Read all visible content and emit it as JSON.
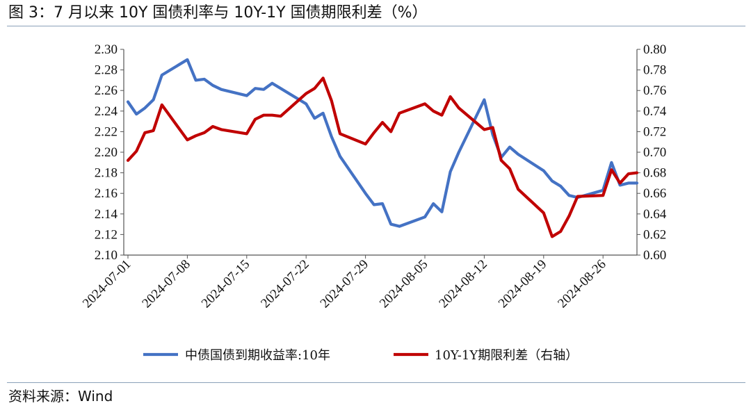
{
  "figure": {
    "title": "图 3：7 月以来 10Y 国债利率与 10Y-1Y 国债期限利差（%）",
    "source": "资料来源：Wind"
  },
  "chart_data": {
    "type": "line",
    "x_tick_labels": [
      "2024-07-01",
      "2024-07-08",
      "2024-07-15",
      "2024-07-22",
      "2024-07-29",
      "2024-08-05",
      "2024-08-12",
      "2024-08-19",
      "2024-08-26"
    ],
    "left_axis": {
      "ylim": [
        2.1,
        2.3
      ],
      "tick_labels": [
        "2.10",
        "2.12",
        "2.14",
        "2.16",
        "2.18",
        "2.20",
        "2.22",
        "2.24",
        "2.26",
        "2.28",
        "2.30"
      ]
    },
    "right_axis": {
      "ylim": [
        0.6,
        0.8
      ],
      "tick_labels": [
        "0.60",
        "0.62",
        "0.64",
        "0.66",
        "0.68",
        "0.70",
        "0.72",
        "0.74",
        "0.76",
        "0.78",
        "0.80"
      ]
    },
    "grid": false,
    "legend_position": "bottom",
    "series": [
      {
        "name": "中债国债到期收益率:10年",
        "axis": "left",
        "color": "#4472C4",
        "points": [
          [
            "2024-07-01",
            2.249
          ],
          [
            "2024-07-02",
            2.237
          ],
          [
            "2024-07-03",
            2.243
          ],
          [
            "2024-07-04",
            2.251
          ],
          [
            "2024-07-05",
            2.275
          ],
          [
            "2024-07-08",
            2.29
          ],
          [
            "2024-07-09",
            2.27
          ],
          [
            "2024-07-10",
            2.271
          ],
          [
            "2024-07-11",
            2.265
          ],
          [
            "2024-07-12",
            2.261
          ],
          [
            "2024-07-15",
            2.255
          ],
          [
            "2024-07-16",
            2.262
          ],
          [
            "2024-07-17",
            2.261
          ],
          [
            "2024-07-18",
            2.267
          ],
          [
            "2024-07-19",
            2.262
          ],
          [
            "2024-07-22",
            2.247
          ],
          [
            "2024-07-23",
            2.233
          ],
          [
            "2024-07-24",
            2.238
          ],
          [
            "2024-07-25",
            2.215
          ],
          [
            "2024-07-26",
            2.196
          ],
          [
            "2024-07-29",
            2.16
          ],
          [
            "2024-07-30",
            2.149
          ],
          [
            "2024-07-31",
            2.15
          ],
          [
            "2024-08-01",
            2.13
          ],
          [
            "2024-08-02",
            2.128
          ],
          [
            "2024-08-05",
            2.137
          ],
          [
            "2024-08-06",
            2.15
          ],
          [
            "2024-08-07",
            2.142
          ],
          [
            "2024-08-08",
            2.181
          ],
          [
            "2024-08-09",
            2.2
          ],
          [
            "2024-08-12",
            2.251
          ],
          [
            "2024-08-13",
            2.217
          ],
          [
            "2024-08-14",
            2.195
          ],
          [
            "2024-08-15",
            2.205
          ],
          [
            "2024-08-16",
            2.198
          ],
          [
            "2024-08-19",
            2.182
          ],
          [
            "2024-08-20",
            2.172
          ],
          [
            "2024-08-21",
            2.167
          ],
          [
            "2024-08-22",
            2.158
          ],
          [
            "2024-08-23",
            2.156
          ],
          [
            "2024-08-26",
            2.163
          ],
          [
            "2024-08-27",
            2.19
          ],
          [
            "2024-08-28",
            2.168
          ],
          [
            "2024-08-29",
            2.17
          ],
          [
            "2024-08-30",
            2.17
          ]
        ]
      },
      {
        "name": "10Y-1Y期限利差（右轴）",
        "axis": "right",
        "color": "#C00000",
        "points": [
          [
            "2024-07-01",
            0.692
          ],
          [
            "2024-07-02",
            0.701
          ],
          [
            "2024-07-03",
            0.719
          ],
          [
            "2024-07-04",
            0.721
          ],
          [
            "2024-07-05",
            0.746
          ],
          [
            "2024-07-08",
            0.712
          ],
          [
            "2024-07-09",
            0.716
          ],
          [
            "2024-07-10",
            0.719
          ],
          [
            "2024-07-11",
            0.725
          ],
          [
            "2024-07-12",
            0.722
          ],
          [
            "2024-07-15",
            0.718
          ],
          [
            "2024-07-16",
            0.732
          ],
          [
            "2024-07-17",
            0.736
          ],
          [
            "2024-07-18",
            0.736
          ],
          [
            "2024-07-19",
            0.735
          ],
          [
            "2024-07-22",
            0.757
          ],
          [
            "2024-07-23",
            0.762
          ],
          [
            "2024-07-24",
            0.772
          ],
          [
            "2024-07-25",
            0.75
          ],
          [
            "2024-07-26",
            0.718
          ],
          [
            "2024-07-29",
            0.708
          ],
          [
            "2024-07-30",
            0.719
          ],
          [
            "2024-07-31",
            0.729
          ],
          [
            "2024-08-01",
            0.72
          ],
          [
            "2024-08-02",
            0.738
          ],
          [
            "2024-08-05",
            0.747
          ],
          [
            "2024-08-06",
            0.74
          ],
          [
            "2024-08-07",
            0.736
          ],
          [
            "2024-08-08",
            0.754
          ],
          [
            "2024-08-09",
            0.743
          ],
          [
            "2024-08-12",
            0.722
          ],
          [
            "2024-08-13",
            0.724
          ],
          [
            "2024-08-14",
            0.692
          ],
          [
            "2024-08-15",
            0.684
          ],
          [
            "2024-08-16",
            0.664
          ],
          [
            "2024-08-19",
            0.641
          ],
          [
            "2024-08-20",
            0.618
          ],
          [
            "2024-08-21",
            0.623
          ],
          [
            "2024-08-22",
            0.638
          ],
          [
            "2024-08-23",
            0.657
          ],
          [
            "2024-08-26",
            0.658
          ],
          [
            "2024-08-27",
            0.683
          ],
          [
            "2024-08-28",
            0.67
          ],
          [
            "2024-08-29",
            0.679
          ],
          [
            "2024-08-30",
            0.68
          ]
        ]
      }
    ]
  }
}
